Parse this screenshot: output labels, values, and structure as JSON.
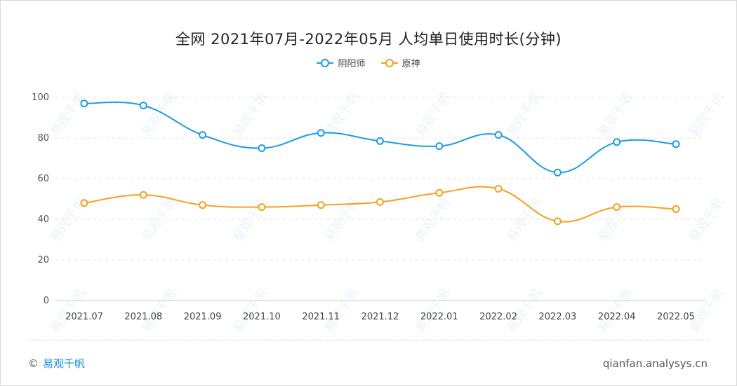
{
  "title": "全网 2021年07月-2022年05月 人均单日使用时长(分钟)",
  "footer": {
    "copyright": "©",
    "brand": "易观千帆",
    "site": "qianfan.analysys.cn"
  },
  "watermark_text": "易观千帆",
  "colors": {
    "series1": "#1a9ee0",
    "series2": "#f5a11d",
    "axis": "#cccccc",
    "grid": "#e6e6e6"
  },
  "chart_data": {
    "type": "line",
    "title": "全网 2021年07月-2022年05月 人均单日使用时长(分钟)",
    "categories": [
      "2021.07",
      "2021.08",
      "2021.09",
      "2021.10",
      "2021.11",
      "2021.12",
      "2022.01",
      "2022.02",
      "2022.03",
      "2022.04",
      "2022.05"
    ],
    "series": [
      {
        "name": "阴阳师",
        "values": [
          97,
          96,
          81.5,
          75,
          82.5,
          78.5,
          76,
          81.5,
          63,
          78,
          77
        ]
      },
      {
        "name": "原神",
        "values": [
          48,
          52,
          47,
          46,
          47,
          48.5,
          53,
          55,
          39,
          46,
          45
        ]
      }
    ],
    "ylim": [
      0,
      100
    ],
    "yticks": [
      0,
      20,
      40,
      60,
      80,
      100
    ],
    "grid": true,
    "legend_position": "top-center",
    "smooth": true
  }
}
